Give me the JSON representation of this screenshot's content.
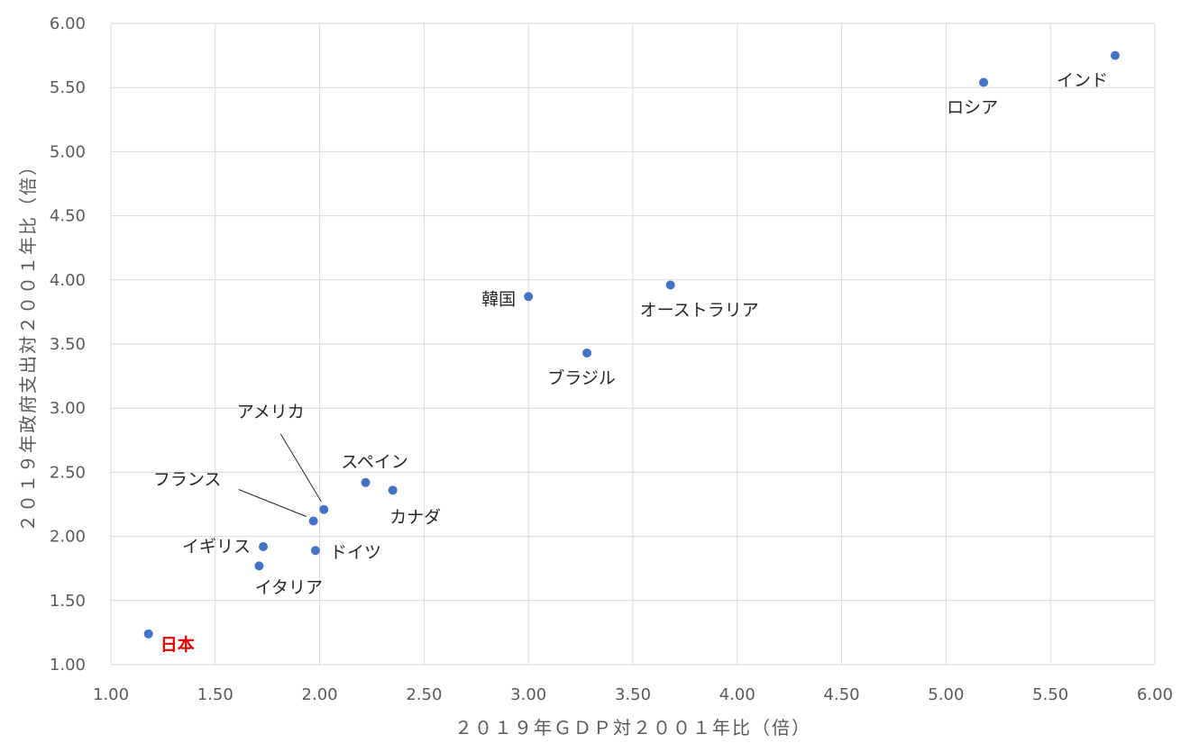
{
  "chart_data": {
    "type": "scatter",
    "xlabel": "２０１９年ＧＤＰ対２００１年比（倍）",
    "ylabel": "２０１９年政府支出対２００１年比（倍）",
    "xlim": [
      1.0,
      6.0
    ],
    "ylim": [
      1.0,
      6.0
    ],
    "x_ticks": [
      "1.00",
      "1.50",
      "2.00",
      "2.50",
      "3.00",
      "3.50",
      "4.00",
      "4.50",
      "5.00",
      "5.50",
      "6.00"
    ],
    "y_ticks": [
      "1.00",
      "1.50",
      "2.00",
      "2.50",
      "3.00",
      "3.50",
      "4.00",
      "4.50",
      "5.00",
      "5.50",
      "6.00"
    ],
    "grid": true,
    "point_color": "#4472c4",
    "highlight_color": "#e00000",
    "points": [
      {
        "label": "インド",
        "x": 5.81,
        "y": 5.75
      },
      {
        "label": "ロシア",
        "x": 5.18,
        "y": 5.54
      },
      {
        "label": "オーストラリア",
        "x": 3.68,
        "y": 3.96
      },
      {
        "label": "韓国",
        "x": 3.0,
        "y": 3.87
      },
      {
        "label": "ブラジル",
        "x": 3.28,
        "y": 3.43
      },
      {
        "label": "スペイン",
        "x": 2.22,
        "y": 2.42
      },
      {
        "label": "カナダ",
        "x": 2.35,
        "y": 2.36
      },
      {
        "label": "アメリカ",
        "x": 2.02,
        "y": 2.21
      },
      {
        "label": "フランス",
        "x": 1.97,
        "y": 2.12
      },
      {
        "label": "イギリス",
        "x": 1.73,
        "y": 1.92
      },
      {
        "label": "ドイツ",
        "x": 1.98,
        "y": 1.89
      },
      {
        "label": "イタリア",
        "x": 1.71,
        "y": 1.77
      },
      {
        "label": "日本",
        "x": 1.18,
        "y": 1.24,
        "highlight": true
      }
    ]
  }
}
